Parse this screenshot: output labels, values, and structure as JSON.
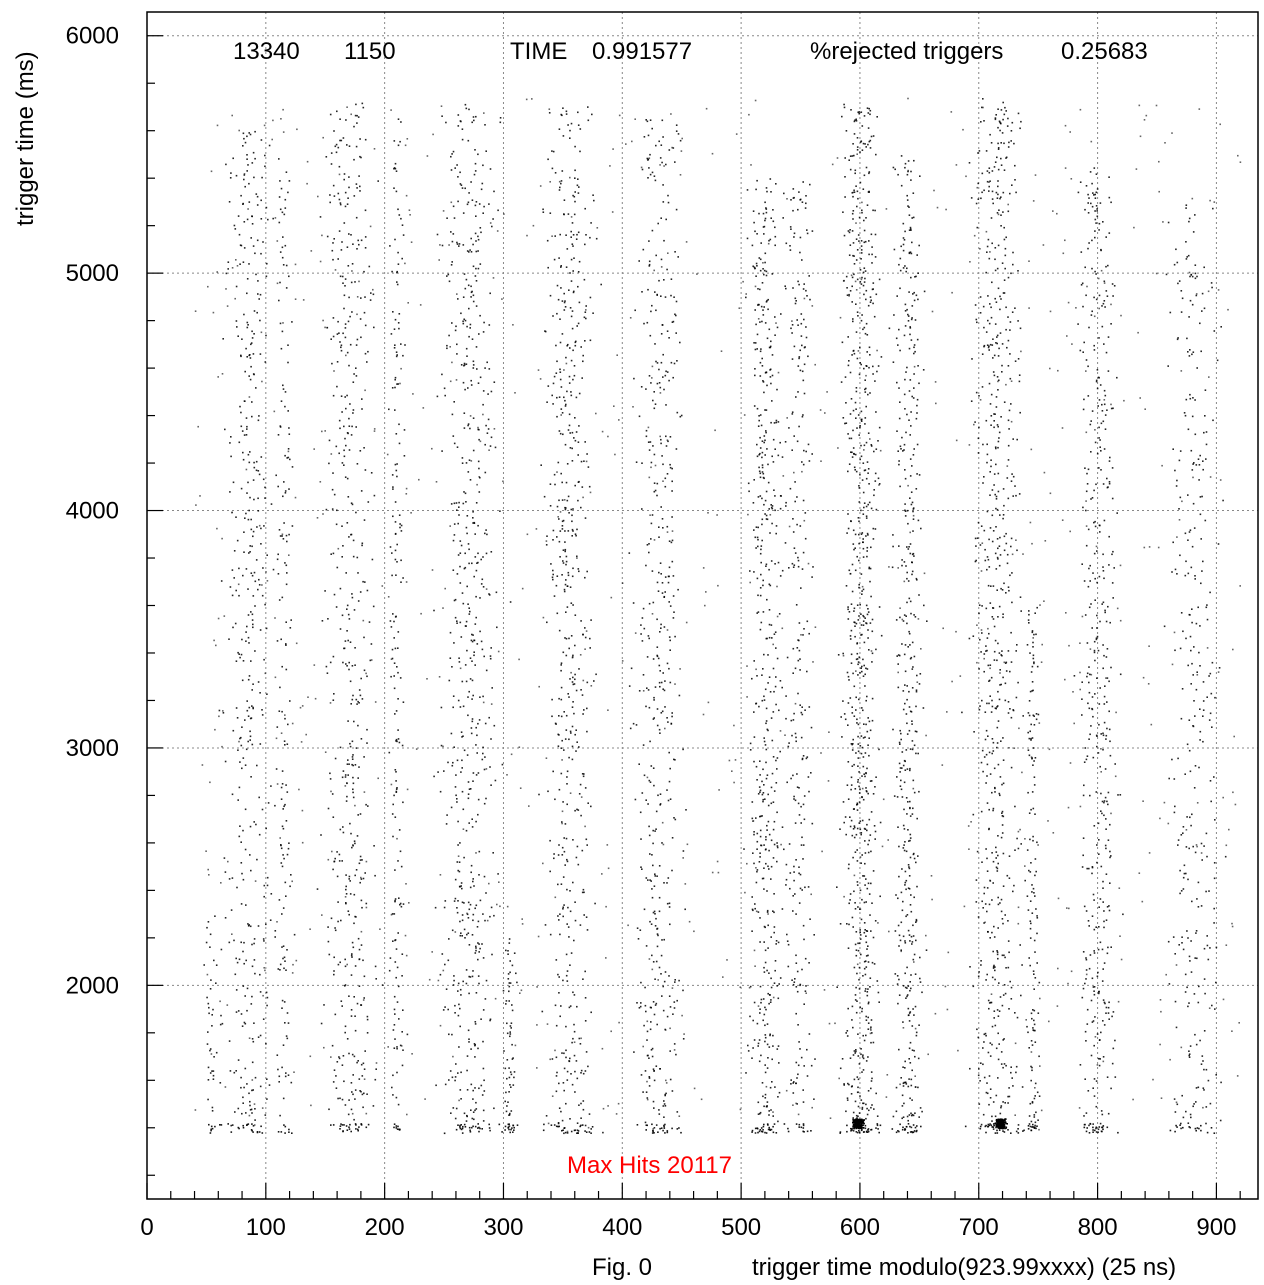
{
  "chart_data": {
    "type": "scatter",
    "xlabel": "trigger time modulo(923.99xxxx) (25 ns)",
    "ylabel": "trigger time (ms)",
    "figure_label": "Fig. 0",
    "xlim": [
      0,
      935
    ],
    "ylim": [
      1100,
      6100
    ],
    "x_ticks": [
      0,
      100,
      200,
      300,
      400,
      500,
      600,
      700,
      800,
      900
    ],
    "y_ticks": [
      2000,
      3000,
      4000,
      5000,
      6000
    ],
    "grid": true,
    "header": {
      "count_a": "13340",
      "count_b": "1150",
      "time_label": "TIME",
      "time_value": "0.991577",
      "rejected_label": "%rejected triggers",
      "rejected_value": "0.25683"
    },
    "annotation": {
      "text": "Max Hits 20117",
      "color": "#ff0000"
    },
    "y_range_of_points": [
      1380,
      5740
    ],
    "bands": [
      {
        "center": 55,
        "width": 12,
        "density": 0.35,
        "y_min": 1400,
        "y_max": 2300
      },
      {
        "center": 85,
        "width": 34,
        "density": 0.8,
        "y_min": 1400,
        "y_max": 5600
      },
      {
        "center": 115,
        "width": 10,
        "density": 0.3,
        "y_min": 1400,
        "y_max": 5500
      },
      {
        "center": 170,
        "width": 34,
        "density": 0.9,
        "y_min": 1400,
        "y_max": 5720
      },
      {
        "center": 210,
        "width": 10,
        "density": 0.35,
        "y_min": 1500,
        "y_max": 5700
      },
      {
        "center": 270,
        "width": 40,
        "density": 1.1,
        "y_min": 1380,
        "y_max": 5740
      },
      {
        "center": 305,
        "width": 8,
        "density": 0.6,
        "y_min": 1380,
        "y_max": 2200
      },
      {
        "center": 355,
        "width": 34,
        "density": 1.0,
        "y_min": 1380,
        "y_max": 5720
      },
      {
        "center": 430,
        "width": 34,
        "density": 0.85,
        "y_min": 1380,
        "y_max": 5650
      },
      {
        "center": 520,
        "width": 22,
        "density": 1.0,
        "y_min": 1380,
        "y_max": 5400
      },
      {
        "center": 548,
        "width": 22,
        "density": 0.55,
        "y_min": 1500,
        "y_max": 5400
      },
      {
        "center": 600,
        "width": 26,
        "density": 1.4,
        "y_min": 1380,
        "y_max": 5720
      },
      {
        "center": 640,
        "width": 20,
        "density": 0.9,
        "y_min": 1380,
        "y_max": 5500
      },
      {
        "center": 715,
        "width": 34,
        "density": 1.2,
        "y_min": 1380,
        "y_max": 5740
      },
      {
        "center": 745,
        "width": 8,
        "density": 0.5,
        "y_min": 1400,
        "y_max": 3600
      },
      {
        "center": 800,
        "width": 26,
        "density": 0.85,
        "y_min": 1380,
        "y_max": 5450
      },
      {
        "center": 880,
        "width": 34,
        "density": 0.65,
        "y_min": 1380,
        "y_max": 5300
      }
    ],
    "hotspots": [
      {
        "x": 598,
        "y": 1400
      },
      {
        "x": 718,
        "y": 1400
      }
    ],
    "point_color": "#000000",
    "grid_color": "#888888"
  }
}
